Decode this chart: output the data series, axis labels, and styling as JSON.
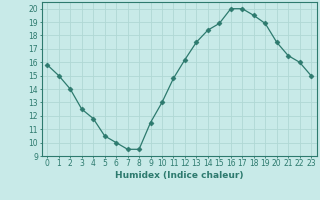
{
  "x": [
    0,
    1,
    2,
    3,
    4,
    5,
    6,
    7,
    8,
    9,
    10,
    11,
    12,
    13,
    14,
    15,
    16,
    17,
    18,
    19,
    20,
    21,
    22,
    23
  ],
  "y": [
    15.8,
    15.0,
    14.0,
    12.5,
    11.8,
    10.5,
    10.0,
    9.5,
    9.5,
    11.5,
    13.0,
    14.8,
    16.2,
    17.5,
    18.4,
    18.9,
    20.0,
    20.0,
    19.5,
    18.9,
    17.5,
    16.5,
    16.0,
    15.0
  ],
  "line_color": "#2d7a6e",
  "marker": "D",
  "marker_size": 2.5,
  "bg_color": "#c8eae8",
  "grid_color": "#b0d8d4",
  "xlabel": "Humidex (Indice chaleur)",
  "ylim": [
    9,
    20.5
  ],
  "xlim": [
    -0.5,
    23.5
  ],
  "yticks": [
    9,
    10,
    11,
    12,
    13,
    14,
    15,
    16,
    17,
    18,
    19,
    20
  ],
  "xticks": [
    0,
    1,
    2,
    3,
    4,
    5,
    6,
    7,
    8,
    9,
    10,
    11,
    12,
    13,
    14,
    15,
    16,
    17,
    18,
    19,
    20,
    21,
    22,
    23
  ],
  "axis_fontsize": 5.5,
  "xlabel_fontsize": 6.5
}
